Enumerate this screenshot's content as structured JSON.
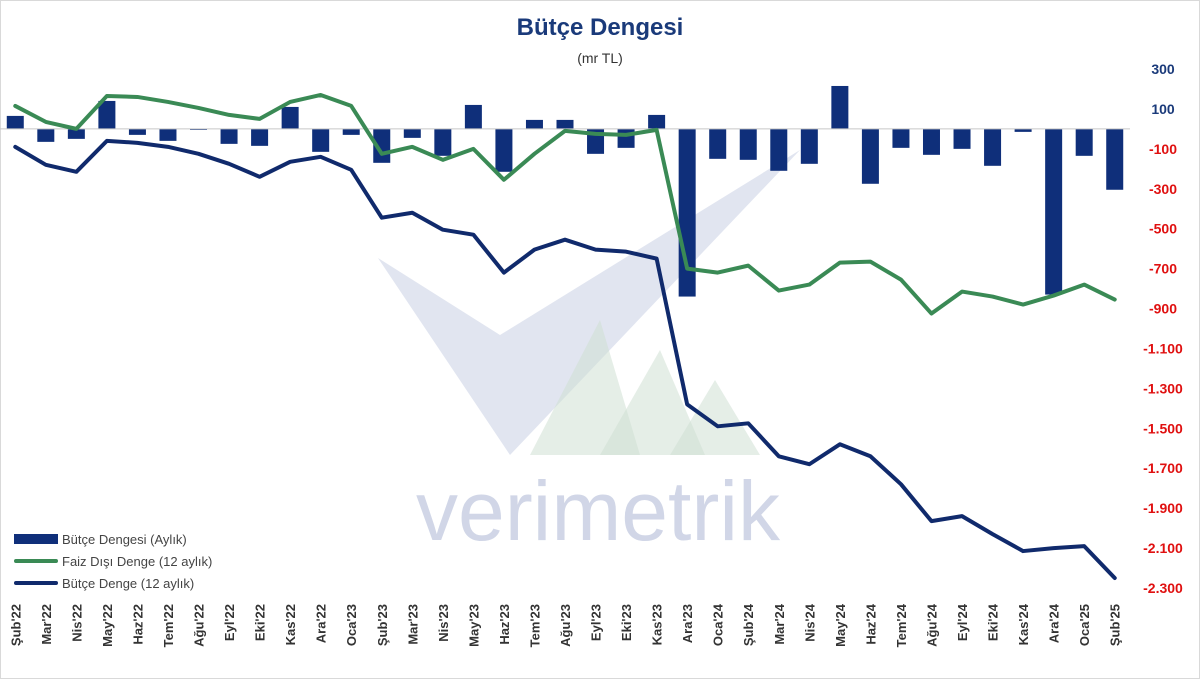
{
  "chart_data": {
    "type": "bar",
    "title": "Bütçe Dengesi",
    "subtitle": "(mr TL)",
    "watermark": "verimetrik",
    "categories": [
      "Şub'22",
      "Mar'22",
      "Nis'22",
      "May'22",
      "Haz'22",
      "Tem'22",
      "Ağu'22",
      "Eyl'22",
      "Eki'22",
      "Kas'22",
      "Ara'22",
      "Oca'23",
      "Şub'23",
      "Mar'23",
      "Nis'23",
      "May'23",
      "Haz'23",
      "Tem'23",
      "Ağu'23",
      "Eyl'23",
      "Eki'23",
      "Kas'23",
      "Ara'23",
      "Oca'24",
      "Şub'24",
      "Mar'24",
      "Nis'24",
      "May'24",
      "Haz'24",
      "Tem'24",
      "Ağu'24",
      "Eyl'24",
      "Eki'24",
      "Kas'24",
      "Ara'24",
      "Oca'25",
      "Şub'25"
    ],
    "yaxis": {
      "side": "right",
      "ylim": [
        -2300,
        300
      ],
      "ticks": [
        300,
        100,
        -100,
        -300,
        -500,
        -700,
        -900,
        -1100,
        -1300,
        -1500,
        -1700,
        -1900,
        -2100,
        -2300
      ],
      "tick_labels": [
        "300",
        "100",
        "-100",
        "-300",
        "-500",
        "-700",
        "-900",
        "-1.100",
        "-1.300",
        "-1.500",
        "-1.700",
        "-1.900",
        "-2.100",
        "-2.300"
      ],
      "positive_color": "#1a3a7a",
      "negative_color": "#e01010"
    },
    "grid": false,
    "legend_position": "bottom-left",
    "series": [
      {
        "name": "Bütçe Dengesi (Aylık)",
        "kind": "bar",
        "color": "#0f2f7a",
        "values": [
          65,
          -65,
          -50,
          140,
          -30,
          -60,
          -5,
          -75,
          -85,
          110,
          -115,
          -30,
          -170,
          -45,
          -135,
          120,
          -215,
          45,
          45,
          -125,
          -95,
          70,
          -840,
          -150,
          -155,
          -210,
          -175,
          215,
          -275,
          -95,
          -130,
          -100,
          -185,
          -15,
          -830,
          -135,
          -305
        ]
      },
      {
        "name": "Faiz Dışı Denge (12 aylık)",
        "kind": "line",
        "color": "#3a8a55",
        "values": [
          115,
          35,
          0,
          165,
          160,
          135,
          105,
          70,
          50,
          135,
          170,
          115,
          -125,
          -90,
          -155,
          -100,
          -255,
          -125,
          -10,
          -25,
          -30,
          -5,
          -700,
          -720,
          -685,
          -810,
          -780,
          -670,
          -665,
          -755,
          -925,
          -815,
          -840,
          -880,
          -835,
          -780,
          -855
        ]
      },
      {
        "name": "Bütçe Denge (12 aylık)",
        "kind": "line",
        "color": "#102a6c",
        "values": [
          -90,
          -180,
          -215,
          -60,
          -70,
          -90,
          -125,
          -175,
          -240,
          -165,
          -140,
          -205,
          -445,
          -420,
          -505,
          -530,
          -720,
          -605,
          -555,
          -605,
          -615,
          -650,
          -1380,
          -1490,
          -1475,
          -1640,
          -1680,
          -1580,
          -1640,
          -1780,
          -1965,
          -1940,
          -2030,
          -2115,
          -2100,
          -2090,
          -2250
        ]
      }
    ]
  }
}
